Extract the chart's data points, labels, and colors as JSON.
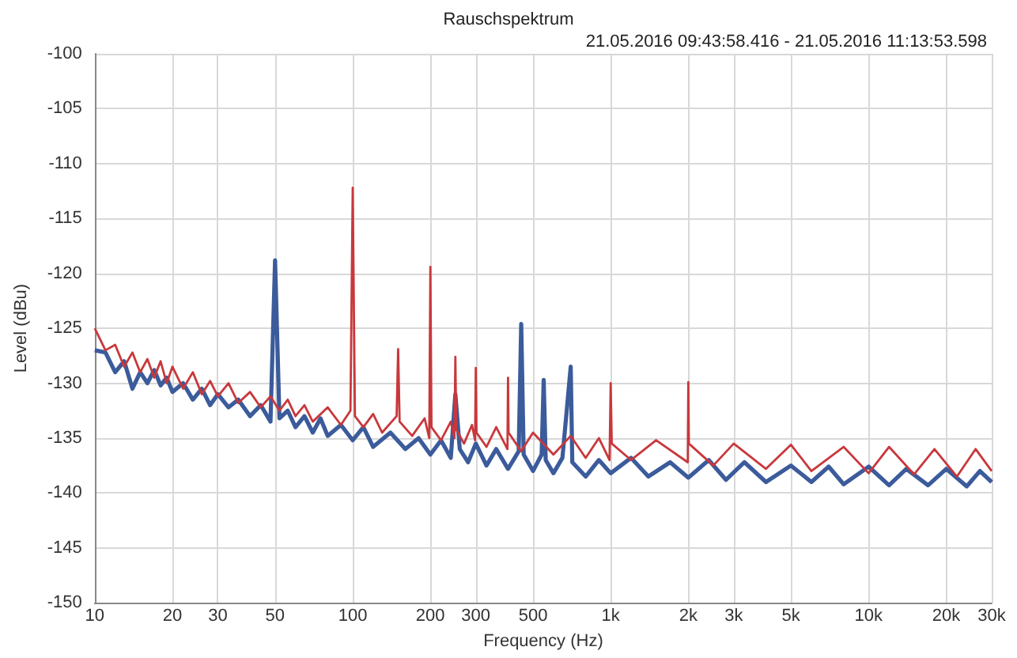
{
  "chart_data": {
    "type": "line",
    "title": "Rauschspektrum",
    "subtitle": "21.05.2016 09:43:58.416 - 21.05.2016 11:13:53.598",
    "xlabel": "Frequency (Hz)",
    "ylabel": "Level (dBu)",
    "log": "x",
    "grid": true,
    "marker": "none",
    "line_style": "solid",
    "xlim": [
      10,
      30000
    ],
    "ylim": [
      -150,
      -100
    ],
    "xticks": [
      10,
      20,
      30,
      50,
      100,
      200,
      300,
      500,
      {
        "value": 1000,
        "label": "1k"
      },
      {
        "value": 2000,
        "label": "2k"
      },
      {
        "value": 3000,
        "label": "3k"
      },
      {
        "value": 5000,
        "label": "5k"
      },
      {
        "value": 10000,
        "label": "10k"
      },
      {
        "value": 20000,
        "label": "20k"
      },
      {
        "value": 30000,
        "label": "30k"
      }
    ],
    "yticks": [
      -150,
      -145,
      -140,
      -135,
      -130,
      -125,
      -120,
      -115,
      -110,
      -105,
      -100
    ],
    "series": [
      {
        "color": "#3b5b9b",
        "x": [
          10,
          11,
          12,
          13,
          14,
          15,
          16,
          17,
          18,
          19,
          20,
          22,
          24,
          26,
          28,
          30,
          33,
          36,
          40,
          44,
          48,
          50,
          52,
          56,
          60,
          65,
          70,
          75,
          80,
          90,
          100,
          110,
          120,
          140,
          160,
          180,
          200,
          220,
          240,
          250,
          260,
          280,
          300,
          330,
          360,
          400,
          440,
          450,
          460,
          500,
          540,
          550,
          560,
          600,
          650,
          700,
          710,
          800,
          900,
          1000,
          1200,
          1400,
          1700,
          2000,
          2400,
          2800,
          3300,
          4000,
          5000,
          6000,
          7000,
          8000,
          10000,
          12000,
          14000,
          17000,
          20000,
          24000,
          27000,
          30000
        ],
        "values": [
          -127.0,
          -127.2,
          -129.0,
          -128.0,
          -130.5,
          -129.0,
          -130.0,
          -128.8,
          -130.2,
          -129.5,
          -130.8,
          -130.0,
          -131.5,
          -130.5,
          -132.0,
          -131.0,
          -132.2,
          -131.5,
          -133.0,
          -132.0,
          -133.5,
          -118.8,
          -133.2,
          -132.5,
          -134.0,
          -133.0,
          -134.5,
          -133.2,
          -134.8,
          -133.8,
          -135.2,
          -134.0,
          -135.8,
          -134.5,
          -136.0,
          -135.0,
          -136.5,
          -135.2,
          -136.8,
          -131.0,
          -136.0,
          -137.2,
          -135.5,
          -137.5,
          -136.0,
          -137.8,
          -136.2,
          -124.6,
          -136.5,
          -138.0,
          -136.5,
          -129.7,
          -137.0,
          -138.2,
          -136.8,
          -128.5,
          -137.2,
          -138.5,
          -137.0,
          -138.2,
          -136.8,
          -138.5,
          -137.2,
          -138.6,
          -137.0,
          -138.8,
          -137.2,
          -139.0,
          -137.5,
          -139.0,
          -137.6,
          -139.2,
          -137.6,
          -139.3,
          -137.8,
          -139.3,
          -137.8,
          -139.4,
          -138.0,
          -139.0
        ]
      },
      {
        "color": "#c8383c",
        "x": [
          10,
          11,
          12,
          13,
          14,
          15,
          16,
          17,
          18,
          19,
          20,
          22,
          24,
          26,
          28,
          30,
          33,
          36,
          40,
          44,
          48,
          52,
          56,
          60,
          65,
          70,
          80,
          90,
          98,
          100,
          102,
          110,
          120,
          130,
          148,
          150,
          152,
          170,
          190,
          198,
          200,
          202,
          220,
          240,
          248,
          250,
          252,
          270,
          290,
          298,
          300,
          302,
          330,
          360,
          398,
          400,
          402,
          450,
          500,
          600,
          700,
          800,
          900,
          990,
          1000,
          1010,
          1200,
          1500,
          1990,
          2000,
          2010,
          2500,
          3000,
          4000,
          5000,
          6000,
          8000,
          10000,
          12000,
          15000,
          18000,
          22000,
          26000,
          30000
        ],
        "values": [
          -125.0,
          -127.0,
          -126.5,
          -128.5,
          -127.2,
          -129.0,
          -127.8,
          -129.5,
          -128.0,
          -130.0,
          -128.5,
          -130.5,
          -129.0,
          -131.0,
          -129.8,
          -131.2,
          -130.0,
          -131.8,
          -130.8,
          -132.2,
          -131.2,
          -132.5,
          -131.5,
          -133.0,
          -132.0,
          -133.5,
          -132.2,
          -133.8,
          -132.5,
          -112.2,
          -133.0,
          -134.0,
          -132.8,
          -134.5,
          -133.0,
          -126.9,
          -133.5,
          -134.8,
          -133.2,
          -135.0,
          -119.4,
          -134.0,
          -135.2,
          -133.5,
          -135.0,
          -127.6,
          -134.2,
          -135.5,
          -133.8,
          -135.2,
          -128.6,
          -134.5,
          -135.8,
          -134.0,
          -136.0,
          -129.5,
          -134.5,
          -136.2,
          -134.5,
          -136.5,
          -134.8,
          -136.8,
          -135.0,
          -137.0,
          -130.0,
          -135.5,
          -137.0,
          -135.2,
          -137.2,
          -129.9,
          -135.5,
          -137.5,
          -135.5,
          -137.8,
          -135.6,
          -138.0,
          -135.8,
          -138.2,
          -135.8,
          -138.3,
          -136.0,
          -138.5,
          -136.0,
          -138.0
        ]
      }
    ]
  }
}
